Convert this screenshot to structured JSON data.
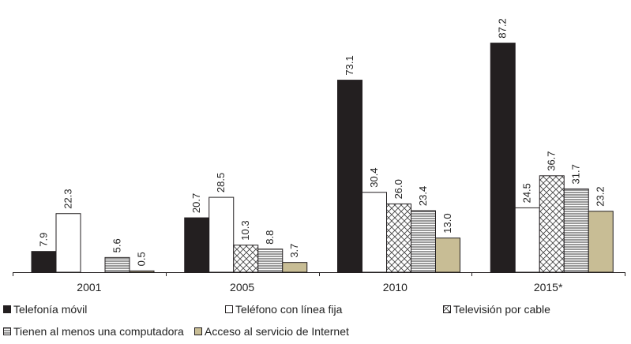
{
  "chart_data": {
    "type": "bar",
    "categories": [
      "2001",
      "2005",
      "2010",
      "2015*"
    ],
    "series": [
      {
        "name": "Telefonía móvil",
        "values": [
          7.9,
          20.7,
          73.1,
          87.2
        ],
        "labels": [
          "7.9",
          "20.7",
          "73.1",
          "87.2"
        ],
        "fill": "#231f20",
        "pattern": "solid"
      },
      {
        "name": "Teléfono con línea fija",
        "values": [
          22.3,
          28.5,
          30.4,
          24.5
        ],
        "labels": [
          "22.3",
          "28.5",
          "30.4",
          "24.5"
        ],
        "fill": "#ffffff",
        "pattern": "none"
      },
      {
        "name": "Televisión por cable",
        "values": [
          null,
          10.3,
          26.0,
          36.7
        ],
        "labels": [
          "",
          "10.3",
          "26.0",
          "36.7"
        ],
        "fill": "#ffffff",
        "pattern": "crosshatch"
      },
      {
        "name": "Tienen al menos una computadora",
        "values": [
          5.6,
          8.8,
          23.4,
          31.7
        ],
        "labels": [
          "5.6",
          "8.8",
          "23.4",
          "31.7"
        ],
        "fill": "#ffffff",
        "pattern": "horizontal-lines"
      },
      {
        "name": "Acceso al servicio de Internet",
        "values": [
          0.5,
          3.7,
          13.0,
          23.2
        ],
        "labels": [
          "0.5",
          "3.7",
          "13.0",
          "23.2"
        ],
        "fill": "#c8bd95",
        "pattern": "solid"
      }
    ],
    "ylim": [
      0,
      100
    ],
    "grid": false,
    "legend_position": "bottom",
    "title": "",
    "xlabel": "",
    "ylabel": ""
  }
}
